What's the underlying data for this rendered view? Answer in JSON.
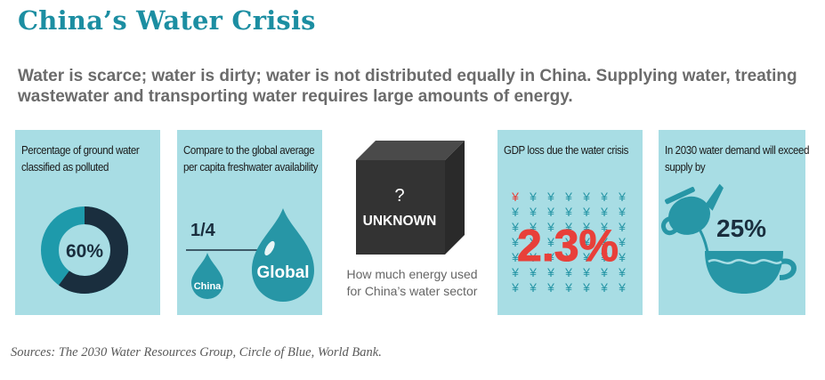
{
  "title": "China’s Water Crisis",
  "subtitle": "Water is scarce; water is dirty; water is not distributed equally in China. Supplying water, treating wastewater and transporting water requires large amounts of energy.",
  "panels": {
    "polluted": {
      "label": "Percentage of ground water classified as polluted",
      "value_text": "60%",
      "value_fraction": 0.6
    },
    "freshwater": {
      "label": "Compare to the global average per capita freshwater availability",
      "fraction_text": "1/4",
      "small_drop": "China",
      "large_drop": "Global"
    },
    "energy": {
      "box_mark": "?",
      "box_label": "UNKNOWN",
      "caption": "How much energy used for China’s water sector"
    },
    "gdp": {
      "label": "GDP loss due the water crisis",
      "value_text": "2.3%",
      "glyph": "¥"
    },
    "demand": {
      "label": "In 2030 water demand will exceed supply by",
      "value_text": "25%"
    }
  },
  "sources": "Sources: The 2030 Water Resources Group, Circle of  Blue, World Bank.",
  "colors": {
    "title": "#1c8ea2",
    "panel": "#a8dde4",
    "teal": "#2796a6",
    "dark": "#1a2e3e",
    "accent": "#e8403a"
  },
  "icons": [
    "donut-chart-icon",
    "water-drop-icon",
    "cube-icon",
    "yen-icon",
    "teapot-icon",
    "cup-icon"
  ]
}
